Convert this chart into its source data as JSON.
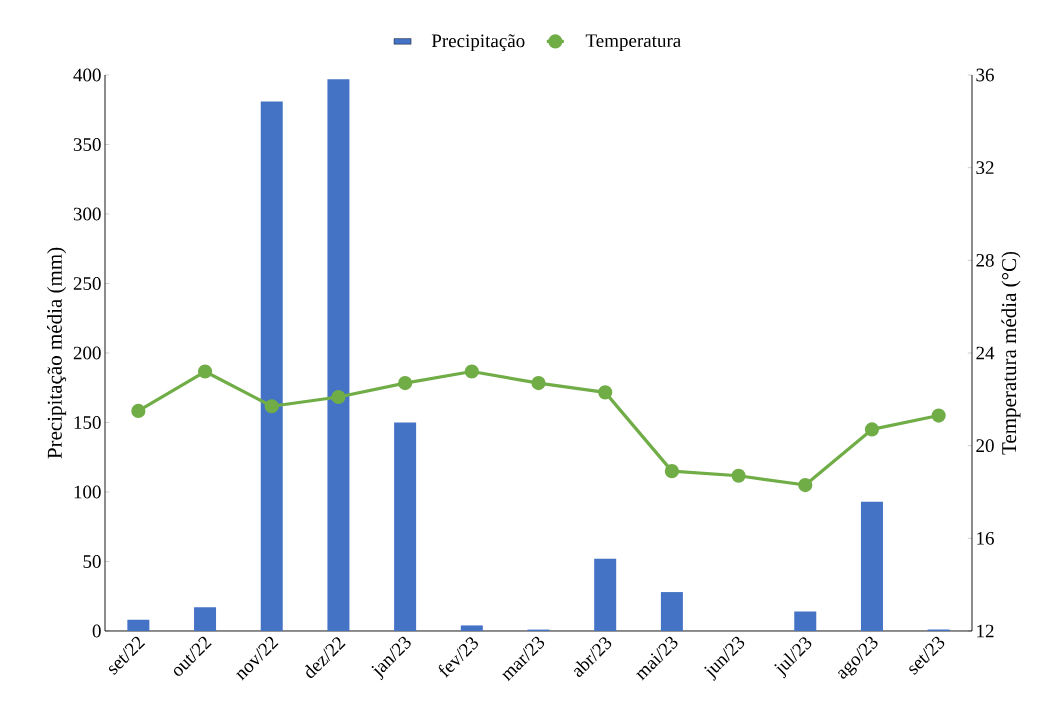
{
  "chart_data": {
    "type": "bar",
    "categories": [
      "set/22",
      "out/22",
      "nov/22",
      "dez/22",
      "jan/23",
      "fev/23",
      "mar/23",
      "abr/23",
      "mai/23",
      "jun/23",
      "jul/23",
      "ago/23",
      "set/23"
    ],
    "series": [
      {
        "name": "Precipitação",
        "color": "#4472c4",
        "values": [
          8,
          17,
          381,
          397,
          150,
          4,
          1,
          52,
          28,
          0,
          14,
          93,
          1
        ]
      },
      {
        "name": "Temperatura",
        "type": "line",
        "axis": "y2",
        "color": "#70ad47",
        "values": [
          21.5,
          23.2,
          21.7,
          22.1,
          22.7,
          23.2,
          22.7,
          22.3,
          18.9,
          18.7,
          18.3,
          20.7,
          21.3
        ]
      }
    ],
    "ylabel": "Precipitação média (mm)",
    "y2label": "Temperatura média (°C)",
    "ylim": [
      0,
      400
    ],
    "yticks": [
      0,
      50,
      100,
      150,
      200,
      250,
      300,
      350,
      400
    ],
    "y2lim": [
      12,
      36
    ],
    "y2ticks": [
      12,
      16,
      20,
      24,
      28,
      32,
      36
    ],
    "legend": "top",
    "marker": "circle",
    "grid": false
  }
}
